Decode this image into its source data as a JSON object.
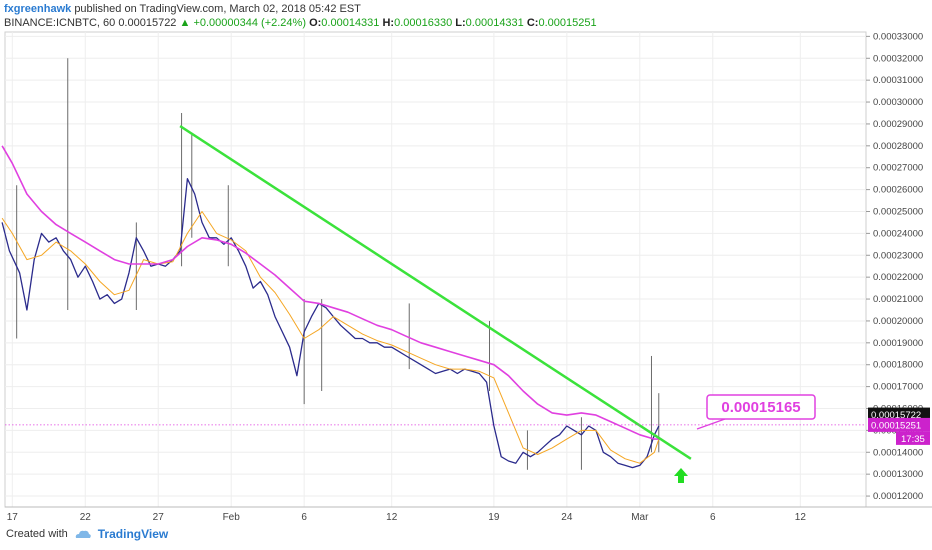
{
  "header": {
    "author": "fxgreenhawk",
    "published": "published on TradingView.com, March 02, 2018 05:42 EST"
  },
  "ohlc": {
    "symbol": "BINANCE:ICNBTC, 60",
    "last": "0.00015722",
    "change": "+0.00000344 (+2.24%)",
    "o_label": "O:",
    "o": "0.00014331",
    "h_label": "H:",
    "h": "0.00016330",
    "l_label": "L:",
    "l": "0.00014331",
    "c_label": "C:",
    "c": "0.00015251"
  },
  "callout": {
    "label": "0.00015165"
  },
  "price_tags": {
    "last": "0.00015722",
    "close": "0.00015251",
    "timer": "17:35"
  },
  "footer": {
    "created_with": "Created with",
    "brand": "TradingView"
  },
  "colors": {
    "candle": "#2b2b8c",
    "wick": "#6b6b6b",
    "ma_fast": "#f5a623",
    "ma_slow": "#e040e0",
    "trendline": "#3be23b",
    "callout": "#e040e0",
    "arrow": "#22dd22",
    "grid": "#eeeeee"
  },
  "chart_data": {
    "type": "line",
    "title": "",
    "xlabel": "",
    "ylabel": "",
    "ylim": [
      0.000115,
      0.000332
    ],
    "y_ticks": [
      "0.00012000",
      "0.00013000",
      "0.00014000",
      "0.00015000",
      "0.00016000",
      "0.00017000",
      "0.00018000",
      "0.00019000",
      "0.00020000",
      "0.00021000",
      "0.00022000",
      "0.00023000",
      "0.00024000",
      "0.00025000",
      "0.00026000",
      "0.00027000",
      "0.00028000",
      "0.00029000",
      "0.00030000",
      "0.00031000",
      "0.00032000",
      "0.00033000"
    ],
    "x_ticks": [
      {
        "label": "17",
        "day": 17
      },
      {
        "label": "22",
        "day": 22
      },
      {
        "label": "27",
        "day": 27
      },
      {
        "label": "Feb",
        "day": 32
      },
      {
        "label": "6",
        "day": 37
      },
      {
        "label": "12",
        "day": 43
      },
      {
        "label": "19",
        "day": 50
      },
      {
        "label": "24",
        "day": 55
      },
      {
        "label": "Mar",
        "day": 60
      },
      {
        "label": "6",
        "day": 65
      },
      {
        "label": "12",
        "day": 71
      }
    ],
    "xlim": [
      16.5,
      75.5
    ],
    "series": [
      {
        "type": "line",
        "x": [
          16.3,
          16.8,
          17.5,
          18.0,
          18.5,
          19.0,
          19.5,
          20.0,
          20.5,
          21.0,
          21.5,
          22.0,
          22.5,
          23.0,
          23.5,
          24.0,
          24.5,
          25.0,
          25.5,
          26.0,
          26.5,
          27.0,
          27.5,
          28.0,
          28.5,
          29.0,
          29.5,
          30.0,
          30.5,
          31.0,
          31.5,
          32.0,
          32.5,
          33.0,
          33.5,
          34.0,
          34.5,
          35.0,
          35.5,
          36.0,
          36.5,
          37.0,
          37.5,
          38.0,
          38.5,
          39.0,
          39.5,
          40.0,
          40.5,
          41.0,
          41.5,
          42.0,
          42.5,
          43.0,
          43.5,
          44.0,
          44.5,
          45.0,
          45.5,
          46.0,
          46.5,
          47.0,
          47.5,
          48.0,
          48.5,
          49.0,
          49.5,
          50.0,
          50.5,
          51.0,
          51.5,
          52.0,
          52.5,
          53.0,
          53.5,
          54.0,
          54.5,
          55.0,
          55.5,
          56.0,
          56.5,
          57.0,
          57.5,
          58.0,
          58.5,
          59.0,
          59.5,
          60.0,
          60.5,
          61.0,
          61.3
        ],
        "values": [
          0.000245,
          0.000232,
          0.000222,
          0.000205,
          0.000228,
          0.00024,
          0.000236,
          0.000238,
          0.000232,
          0.000228,
          0.00022,
          0.000225,
          0.000218,
          0.00021,
          0.000212,
          0.000208,
          0.00021,
          0.000222,
          0.000238,
          0.000232,
          0.000225,
          0.000226,
          0.000225,
          0.000228,
          0.000232,
          0.000265,
          0.000258,
          0.000245,
          0.000238,
          0.000238,
          0.000235,
          0.000238,
          0.000232,
          0.000225,
          0.000215,
          0.000218,
          0.000212,
          0.000202,
          0.000195,
          0.000188,
          0.000175,
          0.000195,
          0.000202,
          0.000208,
          0.000206,
          0.000202,
          0.000198,
          0.000195,
          0.000192,
          0.000192,
          0.00019,
          0.00019,
          0.000188,
          0.000188,
          0.000186,
          0.000184,
          0.000182,
          0.00018,
          0.000178,
          0.000176,
          0.000177,
          0.000178,
          0.000176,
          0.000178,
          0.000177,
          0.000176,
          0.000172,
          0.000152,
          0.000138,
          0.000136,
          0.000135,
          0.00014,
          0.000138,
          0.00014,
          0.000143,
          0.000146,
          0.000148,
          0.000152,
          0.00015,
          0.000148,
          0.000152,
          0.00015,
          0.00014,
          0.000138,
          0.000135,
          0.000134,
          0.000133,
          0.000134,
          0.000138,
          0.000148,
          0.000152
        ]
      },
      {
        "type": "line",
        "x": [
          16.3,
          17.0,
          18.0,
          19.0,
          20.0,
          21.0,
          22.0,
          23.0,
          24.0,
          25.0,
          26.0,
          27.0,
          28.0,
          29.0,
          30.0,
          31.0,
          32.0,
          33.0,
          34.0,
          35.0,
          36.0,
          37.0,
          38.0,
          39.0,
          40.0,
          41.0,
          42.0,
          43.0,
          44.0,
          45.0,
          46.0,
          47.0,
          48.0,
          49.0,
          50.0,
          51.0,
          52.0,
          53.0,
          54.0,
          55.0,
          56.0,
          57.0,
          58.0,
          59.0,
          60.0,
          61.0,
          61.3
        ],
        "values": [
          0.000247,
          0.00024,
          0.000228,
          0.00023,
          0.000236,
          0.000232,
          0.000226,
          0.000218,
          0.000212,
          0.000214,
          0.000228,
          0.000226,
          0.000227,
          0.00024,
          0.00025,
          0.00024,
          0.000237,
          0.000232,
          0.00022,
          0.000213,
          0.000203,
          0.000192,
          0.000196,
          0.000202,
          0.000198,
          0.000194,
          0.000191,
          0.000189,
          0.000186,
          0.000183,
          0.00018,
          0.000178,
          0.000178,
          0.000177,
          0.000174,
          0.000158,
          0.000142,
          0.000139,
          0.000142,
          0.000146,
          0.00015,
          0.00015,
          0.000141,
          0.000137,
          0.000135,
          0.00014,
          0.000146
        ]
      },
      {
        "type": "line",
        "x": [
          16.3,
          17.0,
          18.0,
          19.0,
          20.0,
          21.0,
          22.0,
          23.0,
          24.0,
          25.0,
          26.0,
          27.0,
          28.0,
          29.0,
          30.0,
          31.0,
          32.0,
          33.0,
          34.0,
          35.0,
          36.0,
          37.0,
          38.0,
          39.0,
          40.0,
          41.0,
          42.0,
          43.0,
          44.0,
          45.0,
          46.0,
          47.0,
          48.0,
          49.0,
          50.0,
          51.0,
          52.0,
          53.0,
          54.0,
          55.0,
          56.0,
          57.0,
          58.0,
          59.0,
          60.0,
          61.0,
          61.3
        ],
        "values": [
          0.00028,
          0.000272,
          0.000258,
          0.00025,
          0.000244,
          0.00024,
          0.000236,
          0.000232,
          0.000228,
          0.000226,
          0.000226,
          0.000226,
          0.000228,
          0.000234,
          0.000238,
          0.000237,
          0.000235,
          0.000231,
          0.000226,
          0.000221,
          0.000215,
          0.000209,
          0.000208,
          0.000206,
          0.000204,
          0.000201,
          0.000198,
          0.000196,
          0.000193,
          0.00019,
          0.000188,
          0.000186,
          0.000184,
          0.000182,
          0.00018,
          0.000175,
          0.000168,
          0.000162,
          0.000158,
          0.000157,
          0.000158,
          0.000157,
          0.000154,
          0.000151,
          0.000148,
          0.000146,
          0.000146
        ]
      },
      {
        "type": "line",
        "x": [
          28.5,
          63.5
        ],
        "values": [
          0.000289,
          0.000137
        ]
      }
    ],
    "spikes": [
      {
        "x": 17.3,
        "low": 0.000192,
        "high": 0.000262
      },
      {
        "x": 20.8,
        "low": 0.000205,
        "high": 0.00032
      },
      {
        "x": 25.5,
        "low": 0.000205,
        "high": 0.000245
      },
      {
        "x": 28.6,
        "low": 0.000225,
        "high": 0.000295
      },
      {
        "x": 29.3,
        "low": 0.000238,
        "high": 0.000285
      },
      {
        "x": 31.8,
        "low": 0.000225,
        "high": 0.000262
      },
      {
        "x": 37.0,
        "low": 0.000162,
        "high": 0.00021
      },
      {
        "x": 38.2,
        "low": 0.000168,
        "high": 0.00021
      },
      {
        "x": 44.2,
        "low": 0.000178,
        "high": 0.000208
      },
      {
        "x": 49.7,
        "low": 0.000168,
        "high": 0.0002
      },
      {
        "x": 52.3,
        "low": 0.000132,
        "high": 0.00015
      },
      {
        "x": 56.0,
        "low": 0.000132,
        "high": 0.000156
      },
      {
        "x": 60.8,
        "low": 0.00014,
        "high": 0.000184
      },
      {
        "x": 61.3,
        "low": 0.00014,
        "high": 0.000167
      }
    ],
    "horizontal_line": 0.00015251,
    "callout_price": 0.00015165
  }
}
